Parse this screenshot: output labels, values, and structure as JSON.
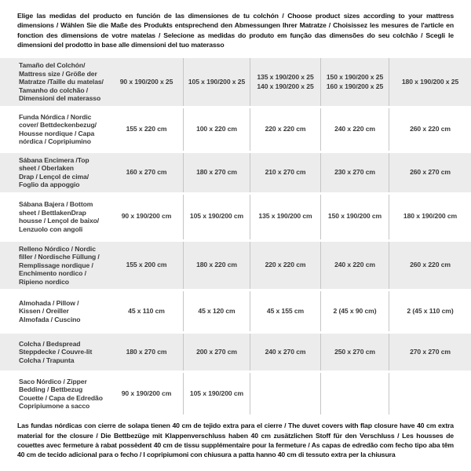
{
  "intro_text": "Elige las medidas del producto en función de las dimensiones de tu colchón / Choose product sizes according to your mattress dimensions / Wählen Sie die Maße des Produkts entsprechend den Abmessungen Ihrer Matratze / Choisissez les mesures de l'article en fonction des dimensions de votre matelas / Selecione as medidas do produto em função das dimensões do seu colchão / Scegli le dimensioni del prodotto in base alle dimensioni del tuo materasso",
  "footer_text": "Las fundas nórdicas con cierre de solapa tienen 40 cm de tejido extra para el cierre  / The duvet covers with flap closure have 40 cm extra material for the closure / Die Bettbezüge mit Klappenverschluss haben 40 cm zusätzlichen Stoff für den Verschluss / Les housses de couettes avec fermeture à rabat possèdent 40 cm de tissu supplémentaire pour la fermeture / As capas de edredão com fecho tipo aba têm 40 cm de tecido adicional para o fecho / I copripiumoni con chiusura a patta hanno 40 cm di tessuto extra per la chiusura",
  "colors": {
    "row_shade": "#ececec",
    "divider": "#c5c5c5",
    "text": "#3a3a3a"
  },
  "table": {
    "rows": [
      {
        "label": "Tamaño del Colchón/\nMattress size / Größe der\nMatratze /Taille du matelas/\nTamanho do colchão /\nDimensioni del materasso",
        "values": [
          "90 x 190/200 x 25",
          "105 x 190/200 x 25",
          "135 x 190/200 x 25\n140 x 190/200 x 25",
          "150 x 190/200 x 25\n160 x 190/200 x 25",
          "180 x 190/200 x 25"
        ]
      },
      {
        "label": "Funda Nórdica /  Nordic\ncover/ Bettdeckenbezug/\nHousse nordique  / Capa\nnórdica / Copripiumino",
        "values": [
          "155 x 220 cm",
          "100 x 220 cm",
          "220 x 220 cm",
          "240 x 220 cm",
          "260 x 220 cm"
        ]
      },
      {
        "label": "Sábana Encimera /Top\nsheet / Oberlaken\nDrap / Lençol de cima/\nFoglio da appoggio",
        "values": [
          "160 x 270 cm",
          "180 x 270 cm",
          "210 x 270 cm",
          "230 x 270 cm",
          "260 x 270 cm"
        ]
      },
      {
        "label": "Sábana Bajera / Bottom\nsheet / BettlakenDrap\nhousse / Lençol de baixo/\nLenzuolo con angoli",
        "values": [
          "90 x 190/200 cm",
          "105 x 190/200 cm",
          "135 x 190/200 cm",
          "150 x 190/200 cm",
          "180 x 190/200 cm"
        ]
      },
      {
        "label": "Relleno Nórdico / Nordic\nfiller / Nordische Füllung /\nRemplissage nordique /\nEnchimento nordico /\nRipieno nordico",
        "values": [
          "155 x 200 cm",
          "180 x 220 cm",
          "220 x 220 cm",
          "240 x 220 cm",
          "260 x 220 cm"
        ]
      },
      {
        "label": "Almohada  / Pillow /\nKissen / Oreiller\nAlmofada / Cuscino",
        "values": [
          "45 x 110 cm",
          "45 x 120 cm",
          "45 x 155 cm",
          "2 (45 x 90 cm)",
          "2 (45 x 110 cm)"
        ]
      },
      {
        "label": "Colcha / Bedspread\nSteppdecke / Couvre-lit\nColcha / Trapunta",
        "values": [
          "180 x 270 cm",
          "200 x 270 cm",
          "240 x 270 cm",
          "250 x 270 cm",
          "270 x 270 cm"
        ]
      },
      {
        "label": "Saco Nórdico / Zipper\nBedding / Bettbezug\nCouette  / Capa de Edredão\nCopripiumone a sacco",
        "values": [
          "90 x 190/200 cm",
          "105 x 190/200 cm",
          "",
          "",
          ""
        ]
      }
    ]
  }
}
